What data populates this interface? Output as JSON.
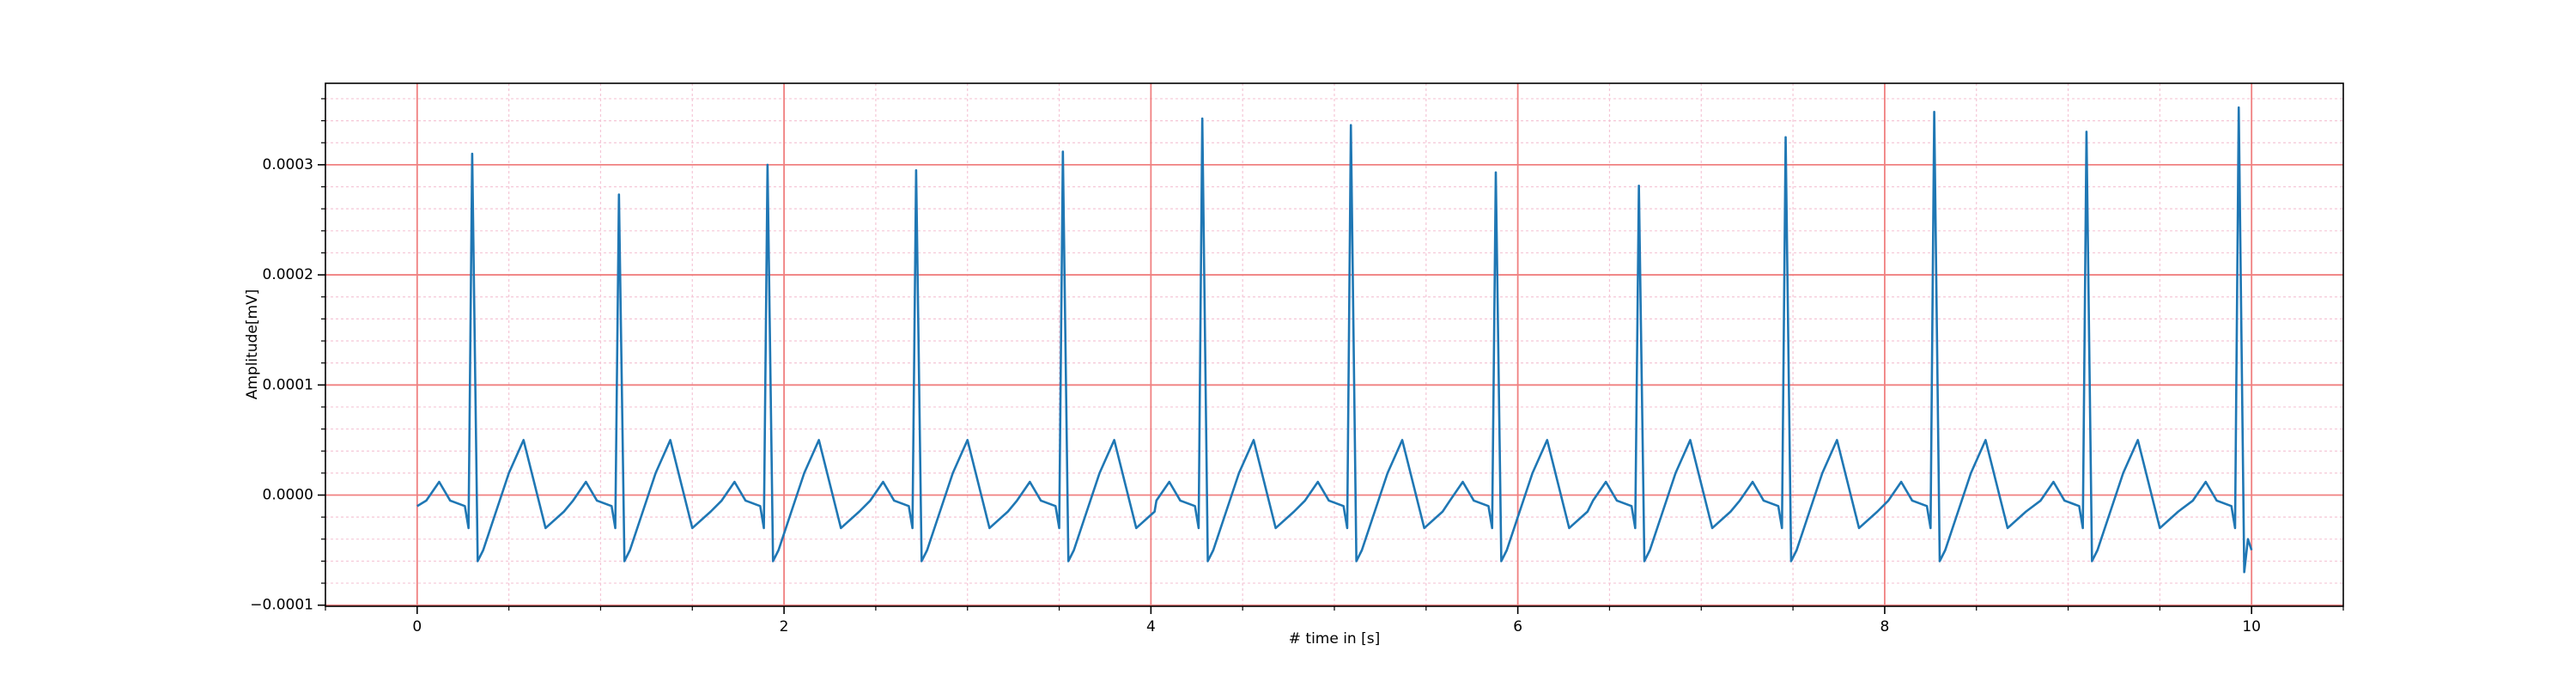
{
  "chart_data": {
    "type": "line",
    "xlabel": "# time in [s]",
    "ylabel": "Amplitude[mV]",
    "x": [
      0,
      0.05,
      0.12,
      0.18,
      0.26,
      0.28,
      0.3,
      0.33,
      0.36,
      0.42,
      0.5,
      0.58,
      0.64,
      0.7,
      0.8,
      0.85,
      0.92,
      0.98,
      1.06,
      1.08,
      1.1,
      1.13,
      1.16,
      1.22,
      1.3,
      1.38,
      1.44,
      1.5,
      1.6,
      1.66,
      1.73,
      1.79,
      1.87,
      1.89,
      1.91,
      1.94,
      1.97,
      2.03,
      2.11,
      2.19,
      2.25,
      2.31,
      2.41,
      2.47,
      2.54,
      2.6,
      2.68,
      2.7,
      2.72,
      2.75,
      2.78,
      2.84,
      2.92,
      3.0,
      3.06,
      3.12,
      3.22,
      3.27,
      3.34,
      3.4,
      3.48,
      3.5,
      3.52,
      3.55,
      3.58,
      3.64,
      3.72,
      3.8,
      3.86,
      3.92,
      4.02,
      4.03,
      4.1,
      4.16,
      4.24,
      4.26,
      4.28,
      4.31,
      4.34,
      4.4,
      4.48,
      4.56,
      4.62,
      4.68,
      4.78,
      4.84,
      4.91,
      4.97,
      5.05,
      5.07,
      5.09,
      5.12,
      5.15,
      5.21,
      5.29,
      5.37,
      5.43,
      5.49,
      5.59,
      5.63,
      5.7,
      5.76,
      5.84,
      5.86,
      5.88,
      5.91,
      5.94,
      6.0,
      6.08,
      6.16,
      6.22,
      6.28,
      6.38,
      6.41,
      6.48,
      6.54,
      6.62,
      6.64,
      6.66,
      6.69,
      6.72,
      6.78,
      6.86,
      6.94,
      7.0,
      7.06,
      7.16,
      7.21,
      7.28,
      7.34,
      7.42,
      7.44,
      7.46,
      7.49,
      7.52,
      7.58,
      7.66,
      7.74,
      7.8,
      7.86,
      7.96,
      8.02,
      8.09,
      8.15,
      8.23,
      8.25,
      8.27,
      8.3,
      8.33,
      8.39,
      8.47,
      8.55,
      8.61,
      8.67,
      8.77,
      8.85,
      8.92,
      8.98,
      9.06,
      9.08,
      9.1,
      9.13,
      9.16,
      9.22,
      9.3,
      9.38,
      9.44,
      9.5,
      9.6,
      9.68,
      9.75,
      9.81,
      9.89,
      9.91,
      9.93,
      9.96,
      9.98,
      10.0
    ],
    "series": [
      {
        "color": "#1f77b4",
        "values": [
          -1e-05,
          -5e-06,
          1.2e-05,
          -5e-06,
          -1e-05,
          -3e-05,
          0.00031,
          -6e-05,
          -5e-05,
          -2e-05,
          2e-05,
          5e-05,
          1e-05,
          -3e-05,
          -1.5e-05,
          -5e-06,
          1.2e-05,
          -5e-06,
          -1e-05,
          -3e-05,
          0.000273,
          -6e-05,
          -5e-05,
          -2e-05,
          2e-05,
          5e-05,
          1e-05,
          -3e-05,
          -1.5e-05,
          -5e-06,
          1.2e-05,
          -5e-06,
          -1e-05,
          -3e-05,
          0.0003,
          -6e-05,
          -5e-05,
          -2e-05,
          2e-05,
          5e-05,
          1e-05,
          -3e-05,
          -1.5e-05,
          -5e-06,
          1.2e-05,
          -5e-06,
          -1e-05,
          -3e-05,
          0.000295,
          -6e-05,
          -5e-05,
          -2e-05,
          2e-05,
          5e-05,
          1e-05,
          -3e-05,
          -1.5e-05,
          -5e-06,
          1.2e-05,
          -5e-06,
          -1e-05,
          -3e-05,
          0.000312,
          -6e-05,
          -5e-05,
          -2e-05,
          2e-05,
          5e-05,
          1e-05,
          -3e-05,
          -1.5e-05,
          -5e-06,
          1.2e-05,
          -5e-06,
          -1e-05,
          -3e-05,
          0.000342,
          -6e-05,
          -5e-05,
          -2e-05,
          2e-05,
          5e-05,
          1e-05,
          -3e-05,
          -1.5e-05,
          -5e-06,
          1.2e-05,
          -5e-06,
          -1e-05,
          -3e-05,
          0.000336,
          -6e-05,
          -5e-05,
          -2e-05,
          2e-05,
          5e-05,
          1e-05,
          -3e-05,
          -1.5e-05,
          -5e-06,
          1.2e-05,
          -5e-06,
          -1e-05,
          -3e-05,
          0.000293,
          -6e-05,
          -5e-05,
          -2e-05,
          2e-05,
          5e-05,
          1e-05,
          -3e-05,
          -1.5e-05,
          -5e-06,
          1.2e-05,
          -5e-06,
          -1e-05,
          -3e-05,
          0.000281,
          -6e-05,
          -5e-05,
          -2e-05,
          2e-05,
          5e-05,
          1e-05,
          -3e-05,
          -1.5e-05,
          -5e-06,
          1.2e-05,
          -5e-06,
          -1e-05,
          -3e-05,
          0.000325,
          -6e-05,
          -5e-05,
          -2e-05,
          2e-05,
          5e-05,
          1e-05,
          -3e-05,
          -1.5e-05,
          -5e-06,
          1.2e-05,
          -5e-06,
          -1e-05,
          -3e-05,
          0.000348,
          -6e-05,
          -5e-05,
          -2e-05,
          2e-05,
          5e-05,
          1e-05,
          -3e-05,
          -1.5e-05,
          -5e-06,
          1.2e-05,
          -5e-06,
          -1e-05,
          -3e-05,
          0.00033,
          -6e-05,
          -5e-05,
          -2e-05,
          2e-05,
          5e-05,
          1e-05,
          -3e-05,
          -1.5e-05,
          -5e-06,
          1.2e-05,
          -5e-06,
          -1e-05,
          -3e-05,
          0.000352,
          -7e-05,
          -4e-05,
          -5e-05
        ]
      }
    ],
    "xlim": [
      -0.5,
      10.5
    ],
    "xticks": [
      0,
      2,
      4,
      6,
      8,
      10
    ],
    "ylim": [
      -0.000101,
      0.000374
    ],
    "yticks": [
      {
        "value": -0.0001,
        "label": "−0.0001"
      },
      {
        "value": 0,
        "label": "0.0000"
      },
      0.0001,
      0.0002,
      0.0003
    ],
    "xminorticks": [
      -0.5,
      0.5,
      1,
      1.5,
      2.5,
      3,
      3.5,
      4.5,
      5,
      5.5,
      6.5,
      7,
      7.5,
      8.5,
      9,
      9.5,
      10.5
    ],
    "yminorticks": [
      -8e-05,
      -6e-05,
      -4e-05,
      -2e-05,
      2e-05,
      4e-05,
      6e-05,
      8e-05,
      0.00012,
      0.00014,
      0.00016,
      0.00018,
      0.00022,
      0.00024,
      0.00026,
      0.00028,
      0.00032,
      0.00034,
      0.00036
    ],
    "grid": true,
    "grid_color": "#f08080",
    "minor_grid_color": "#f5c6d6"
  }
}
